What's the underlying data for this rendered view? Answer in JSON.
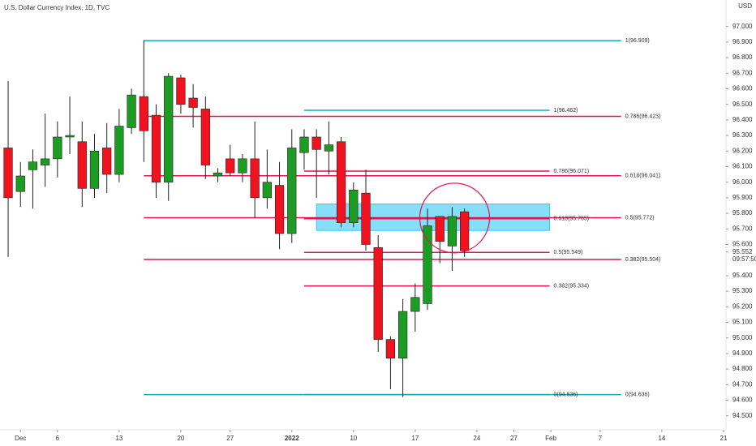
{
  "chart_data": {
    "type": "candlestick",
    "title": "U.S. Dollar Currency Index, 1D, TVC",
    "currency": "USD",
    "last_price": {
      "value": 95.552,
      "label": "95.552"
    },
    "countdown": "09:57:50",
    "colors": {
      "up": "#1c9c22",
      "down": "#f0121f"
    },
    "xlim": [
      -0.66,
      58.2
    ],
    "ylim": [
      94.41,
      97.17
    ],
    "xticks": [
      {
        "value": 1,
        "label": "Dec"
      },
      {
        "value": 4,
        "label": "6"
      },
      {
        "value": 9,
        "label": "13"
      },
      {
        "value": 14,
        "label": "20"
      },
      {
        "value": 18,
        "label": "27"
      },
      {
        "value": 23,
        "label": "2022"
      },
      {
        "value": 28,
        "label": "10"
      },
      {
        "value": 33,
        "label": "17"
      },
      {
        "value": 38,
        "label": "24"
      },
      {
        "value": 41,
        "label": "27"
      },
      {
        "value": 44,
        "label": "Feb"
      },
      {
        "value": 48,
        "label": "7"
      },
      {
        "value": 53,
        "label": "14"
      },
      {
        "value": 58,
        "label": "21"
      }
    ],
    "yticks": [
      {
        "value": 97.0,
        "label": "97.000"
      },
      {
        "value": 96.9,
        "label": "96.900"
      },
      {
        "value": 96.8,
        "label": "96.800"
      },
      {
        "value": 96.7,
        "label": "96.700"
      },
      {
        "value": 96.6,
        "label": "96.600"
      },
      {
        "value": 96.5,
        "label": "96.500"
      },
      {
        "value": 96.4,
        "label": "96.400"
      },
      {
        "value": 96.3,
        "label": "96.300"
      },
      {
        "value": 96.2,
        "label": "96.200"
      },
      {
        "value": 96.1,
        "label": "96.100"
      },
      {
        "value": 96.0,
        "label": "96.000"
      },
      {
        "value": 95.9,
        "label": "95.900"
      },
      {
        "value": 95.8,
        "label": "95.800"
      },
      {
        "value": 95.7,
        "label": "95.700"
      },
      {
        "value": 95.6,
        "label": "95.600"
      },
      {
        "value": 95.4,
        "label": "95.400"
      },
      {
        "value": 95.3,
        "label": "95.300"
      },
      {
        "value": 95.2,
        "label": "95.200"
      },
      {
        "value": 95.1,
        "label": "95.100"
      },
      {
        "value": 95.0,
        "label": "95.000"
      },
      {
        "value": 94.9,
        "label": "94.900"
      },
      {
        "value": 94.8,
        "label": "94.800"
      },
      {
        "value": 94.7,
        "label": "94.700"
      },
      {
        "value": 94.6,
        "label": "94.600"
      },
      {
        "value": 94.5,
        "label": "94.500"
      }
    ],
    "open": [
      96.22,
      95.94,
      96.08,
      96.11,
      96.15,
      96.29,
      96.26,
      95.96,
      96.22,
      96.05,
      96.35,
      96.55,
      96.43,
      96.0,
      96.67,
      96.54,
      96.47,
      96.04,
      96.15,
      96.06,
      96.15,
      95.9,
      95.98,
      95.67,
      96.19,
      96.29,
      96.2,
      96.26,
      95.74,
      95.93,
      95.58,
      94.99,
      94.87,
      95.17,
      95.22,
      95.78,
      95.59,
      95.81
    ],
    "high": [
      96.65,
      96.13,
      96.21,
      96.44,
      96.39,
      96.55,
      96.39,
      96.31,
      96.38,
      96.47,
      96.6,
      96.91,
      96.5,
      96.7,
      96.69,
      96.63,
      96.55,
      96.09,
      96.24,
      96.18,
      96.39,
      96.21,
      96.13,
      96.34,
      96.34,
      96.34,
      96.39,
      96.29,
      96.0,
      96.08,
      95.66,
      95.01,
      95.25,
      95.35,
      95.83,
      95.78,
      95.84,
      95.83
    ],
    "low": [
      95.52,
      95.84,
      95.83,
      95.97,
      96.03,
      96.18,
      95.84,
      95.9,
      95.93,
      96.0,
      96.31,
      96.13,
      95.9,
      95.88,
      96.44,
      96.35,
      96.02,
      96.0,
      96.04,
      96.0,
      95.77,
      95.83,
      95.57,
      95.61,
      96.08,
      95.9,
      96.05,
      95.71,
      95.71,
      95.56,
      94.91,
      94.67,
      94.62,
      95.04,
      95.18,
      95.48,
      95.43,
      95.52
    ],
    "close": [
      95.9,
      96.04,
      96.13,
      96.15,
      96.29,
      96.3,
      95.96,
      96.2,
      96.05,
      96.36,
      96.56,
      96.33,
      96.0,
      96.68,
      96.5,
      96.48,
      96.11,
      96.06,
      96.06,
      96.15,
      95.9,
      96.0,
      95.67,
      96.22,
      96.29,
      96.21,
      96.24,
      95.74,
      95.95,
      95.6,
      94.99,
      94.87,
      95.17,
      95.26,
      95.72,
      95.62,
      95.78,
      95.56
    ],
    "fib_levels": [
      {
        "label": "1(96.909)",
        "value": 96.909,
        "start": 11,
        "end": 49.7,
        "color": "#11a9c9"
      },
      {
        "label": "0.786(96.423)",
        "value": 96.423,
        "start": 11,
        "end": 49.7,
        "color": "#e8114e"
      },
      {
        "label": "0.618(96.041)",
        "value": 96.041,
        "start": 11,
        "end": 49.7,
        "color": "#e8114e"
      },
      {
        "label": "0.5(95.772)",
        "value": 95.772,
        "start": 11,
        "end": 49.7,
        "color": "#e8114e"
      },
      {
        "label": "0.382(95.504)",
        "value": 95.504,
        "start": 11,
        "end": 49.7,
        "color": "#e8114e"
      },
      {
        "label": "0(94.636)",
        "value": 94.636,
        "start": 11,
        "end": 49.7,
        "color": "#11a9c9"
      },
      {
        "label": "1(96.462)",
        "value": 96.462,
        "start": 24,
        "end": 43.9,
        "color": "#11a9c9"
      },
      {
        "label": "0.786(96.071)",
        "value": 96.071,
        "start": 24,
        "end": 43.9,
        "color": "#e8114e"
      },
      {
        "label": "0.618(95.765)",
        "value": 95.765,
        "start": 24,
        "end": 43.9,
        "color": "#e8114e"
      },
      {
        "label": "0.5(95.549)",
        "value": 95.549,
        "start": 24,
        "end": 43.9,
        "color": "#e8114e"
      },
      {
        "label": "0.382(95.334)",
        "value": 95.334,
        "start": 24,
        "end": 43.9,
        "color": "#e8114e"
      },
      {
        "label": "0(94.636)",
        "value": 94.636,
        "start": 24,
        "end": 43.9,
        "color": "#11a9c9"
      }
    ],
    "zone": {
      "x0": 25,
      "x1": 43.9,
      "y0": 95.69,
      "y1": 95.86,
      "color": "#36c8f4"
    },
    "circle": {
      "x": 36.2,
      "y": 95.77,
      "color": "#e8114e"
    }
  }
}
